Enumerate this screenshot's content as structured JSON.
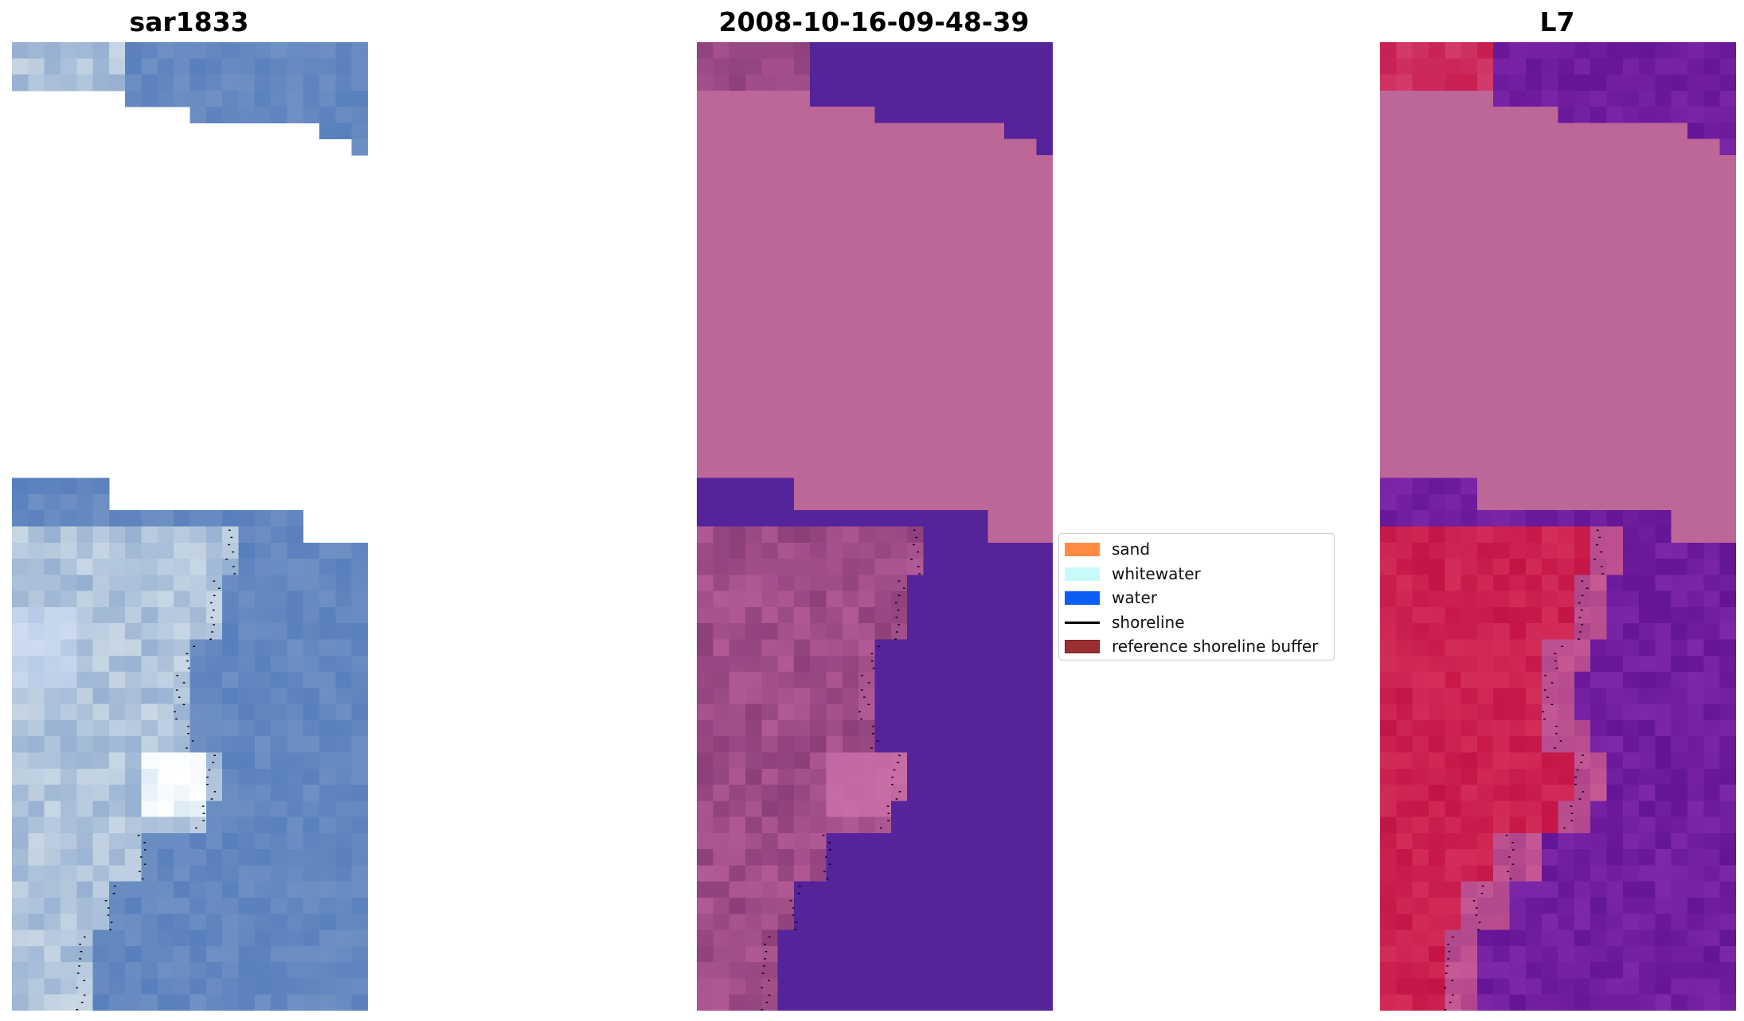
{
  "panels": [
    {
      "title": "sar1833",
      "palette": "rgb"
    },
    {
      "title": "2008-10-16-09-48-39",
      "palette": "classified"
    },
    {
      "title": "L7",
      "palette": "mndwi"
    }
  ],
  "legend": {
    "items": [
      {
        "label": "sand",
        "color": "#ff8c42",
        "kind": "patch"
      },
      {
        "label": "whitewater",
        "color": "#c8fafa",
        "kind": "patch"
      },
      {
        "label": "water",
        "color": "#0b5ef5",
        "kind": "patch"
      },
      {
        "label": "shoreline",
        "color": "#000000",
        "kind": "line"
      },
      {
        "label": "reference shoreline buffer",
        "color": "#9b3032",
        "kind": "patch"
      }
    ]
  },
  "colors": {
    "nodata": "#bd6698",
    "water_classified": "#55239a",
    "sand_classified": "#9e4983",
    "rgb_water": "#5f86bd",
    "rgb_land": "#a6bddb",
    "mndwi_land": "#c81d4d",
    "mndwi_water": "#6a1a9d"
  }
}
